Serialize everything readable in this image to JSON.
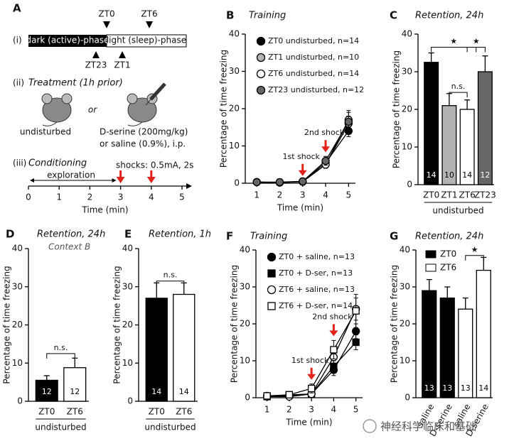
{
  "panel_a": {
    "label": "A",
    "row1": {
      "index": "(i)",
      "dark": "dark (active)-phase",
      "light": "light (sleep)-phase",
      "markers_top": [
        "ZT0",
        "ZT6"
      ],
      "markers_bottom": [
        "ZT23",
        "ZT1"
      ]
    },
    "row2": {
      "index": "(ii)",
      "title": "Treatment (1h prior)",
      "left": "undisturbed",
      "or": "or",
      "right": [
        "D-serine (200mg/kg)",
        "or saline (0.9%), i.p."
      ]
    },
    "row3": {
      "index": "(iii)",
      "title": "Conditioning",
      "shocks": "shocks: 0.5mA, 2s",
      "exploration": "exploration",
      "xlim": [
        0,
        5
      ],
      "xticks": [
        0,
        1,
        2,
        3,
        4,
        5
      ],
      "xlabel": "Time (min)",
      "shock_times": [
        3,
        4
      ]
    }
  },
  "chart_data": [
    {
      "type": "line",
      "panel": "B",
      "title": "Training",
      "xlabel": "Time (min)",
      "ylabel": "Percentage of time freezing",
      "x": [
        1,
        2,
        3,
        4,
        5
      ],
      "xlim": [
        0.5,
        5.3
      ],
      "xticks": [
        1,
        2,
        3,
        4,
        5
      ],
      "ylim": [
        0,
        40
      ],
      "yticks": [
        0,
        10,
        20,
        30,
        40
      ],
      "legend": "upper left",
      "series": [
        {
          "name": "ZT0 undisturbed, n=14",
          "color": "#000000",
          "marker": "circle",
          "values": [
            0.3,
            0.2,
            0.5,
            5.5,
            14
          ],
          "errors": [
            0.3,
            0.2,
            0.3,
            1,
            1.5
          ]
        },
        {
          "name": "ZT1 undisturbed, n=10",
          "color": "#b3b3b3",
          "marker": "circle",
          "values": [
            0.3,
            0.2,
            0.4,
            5,
            16
          ],
          "errors": [
            0.3,
            0.2,
            0.3,
            1,
            2
          ]
        },
        {
          "name": "ZT6 undisturbed, n=14",
          "color": "#ffffff",
          "marker": "circle",
          "values": [
            0.3,
            0.2,
            0.4,
            5,
            17
          ],
          "errors": [
            0.3,
            0.2,
            0.3,
            1,
            2
          ]
        },
        {
          "name": "ZT23 undisturbed, n=12",
          "color": "#666666",
          "marker": "circle",
          "values": [
            0.3,
            0.3,
            0.5,
            6,
            16.5
          ],
          "errors": [
            0.3,
            0.2,
            0.3,
            1.2,
            3
          ]
        }
      ],
      "shock_times": [
        3,
        4
      ],
      "shock_labels": [
        "1st shock",
        "2nd shock"
      ]
    },
    {
      "type": "bar",
      "panel": "C",
      "title": "Retention, 24h",
      "ylabel": "Percentage of time freezing",
      "categories": [
        "ZT0",
        "ZT1",
        "ZT6",
        "ZT23"
      ],
      "values": [
        32.5,
        21,
        20,
        30
      ],
      "errors": [
        2.5,
        3.2,
        2.5,
        4.2
      ],
      "colors": [
        "#000000",
        "#b3b3b3",
        "#ffffff",
        "#666666"
      ],
      "n": [
        14,
        10,
        14,
        12
      ],
      "group_label": "undisturbed",
      "ylim": [
        0,
        40
      ],
      "yticks": [
        0,
        10,
        20,
        30,
        40
      ],
      "annotations": [
        "★",
        "n.s.",
        "★"
      ]
    },
    {
      "type": "bar",
      "panel": "D",
      "title": "Retention, 24h",
      "subtitle": "Context B",
      "ylabel": "Percentage of time freezing",
      "categories": [
        "ZT0",
        "ZT6"
      ],
      "values": [
        5.5,
        8.8
      ],
      "errors": [
        1.2,
        2.5
      ],
      "colors": [
        "#000000",
        "#ffffff"
      ],
      "n": [
        12,
        12
      ],
      "group_label": "undisturbed",
      "ylim": [
        0,
        40
      ],
      "yticks": [
        0,
        10,
        20,
        30,
        40
      ],
      "annotations": [
        "n.s."
      ]
    },
    {
      "type": "bar",
      "panel": "E",
      "title": "Retention, 1h",
      "ylabel": "Percentage of time freezing",
      "categories": [
        "ZT0",
        "ZT6"
      ],
      "values": [
        27,
        28
      ],
      "errors": [
        4,
        3
      ],
      "colors": [
        "#000000",
        "#ffffff"
      ],
      "n": [
        14,
        14
      ],
      "group_label": "undisturbed",
      "ylim": [
        0,
        40
      ],
      "yticks": [
        0,
        10,
        20,
        30,
        40
      ],
      "annotations": [
        "n.s."
      ]
    },
    {
      "type": "line",
      "panel": "F",
      "title": "Training",
      "xlabel": "Time (min)",
      "ylabel": "Percentage of time freezing",
      "x": [
        1,
        2,
        3,
        4,
        5
      ],
      "xlim": [
        0.5,
        5.3
      ],
      "xticks": [
        1,
        2,
        3,
        4,
        5
      ],
      "ylim": [
        0,
        40
      ],
      "yticks": [
        0,
        10,
        20,
        30,
        40
      ],
      "legend": "upper left",
      "series": [
        {
          "name": "ZT0 + saline, n=13",
          "color": "#000000",
          "marker": "circle",
          "values": [
            0.5,
            0.5,
            1,
            7.5,
            18
          ],
          "errors": [
            0.4,
            0.4,
            0.6,
            1.5,
            2
          ]
        },
        {
          "name": "ZT0 + D-ser, n=13",
          "color": "#000000",
          "marker": "square",
          "values": [
            0.3,
            0.8,
            1,
            8.5,
            15
          ],
          "errors": [
            0.3,
            0.5,
            0.6,
            1.5,
            2
          ]
        },
        {
          "name": "ZT6 + saline, n=13",
          "color": "#ffffff",
          "marker": "circle",
          "values": [
            0.3,
            0.3,
            1,
            11,
            24
          ],
          "errors": [
            0.3,
            0.3,
            0.6,
            2,
            3
          ]
        },
        {
          "name": "ZT6 + D-ser, n=14",
          "color": "#ffffff",
          "marker": "square",
          "values": [
            0.5,
            0.8,
            2.5,
            13,
            23.5
          ],
          "errors": [
            0.4,
            0.5,
            1.2,
            2.5,
            4.5
          ]
        }
      ],
      "shock_times": [
        3,
        4
      ],
      "shock_labels": [
        "1st shock",
        "2nd shock"
      ]
    },
    {
      "type": "bar",
      "panel": "G",
      "title": "Retention, 24h",
      "ylabel": "Percentage of time freezing",
      "categories": [
        "saline",
        "D-serine",
        "saline",
        "D-serine"
      ],
      "values": [
        29,
        27,
        24,
        34.5
      ],
      "errors": [
        3,
        3,
        3,
        3.5
      ],
      "colors": [
        "#000000",
        "#000000",
        "#ffffff",
        "#ffffff"
      ],
      "n": [
        13,
        13,
        13,
        14
      ],
      "legend_entries": [
        {
          "name": "ZT0",
          "color": "#000000"
        },
        {
          "name": "ZT6",
          "color": "#ffffff"
        }
      ],
      "ylim": [
        0,
        40
      ],
      "yticks": [
        0,
        10,
        20,
        30,
        40
      ],
      "annotations": [
        "★"
      ]
    }
  ],
  "watermark": "神经科学临床和基础"
}
